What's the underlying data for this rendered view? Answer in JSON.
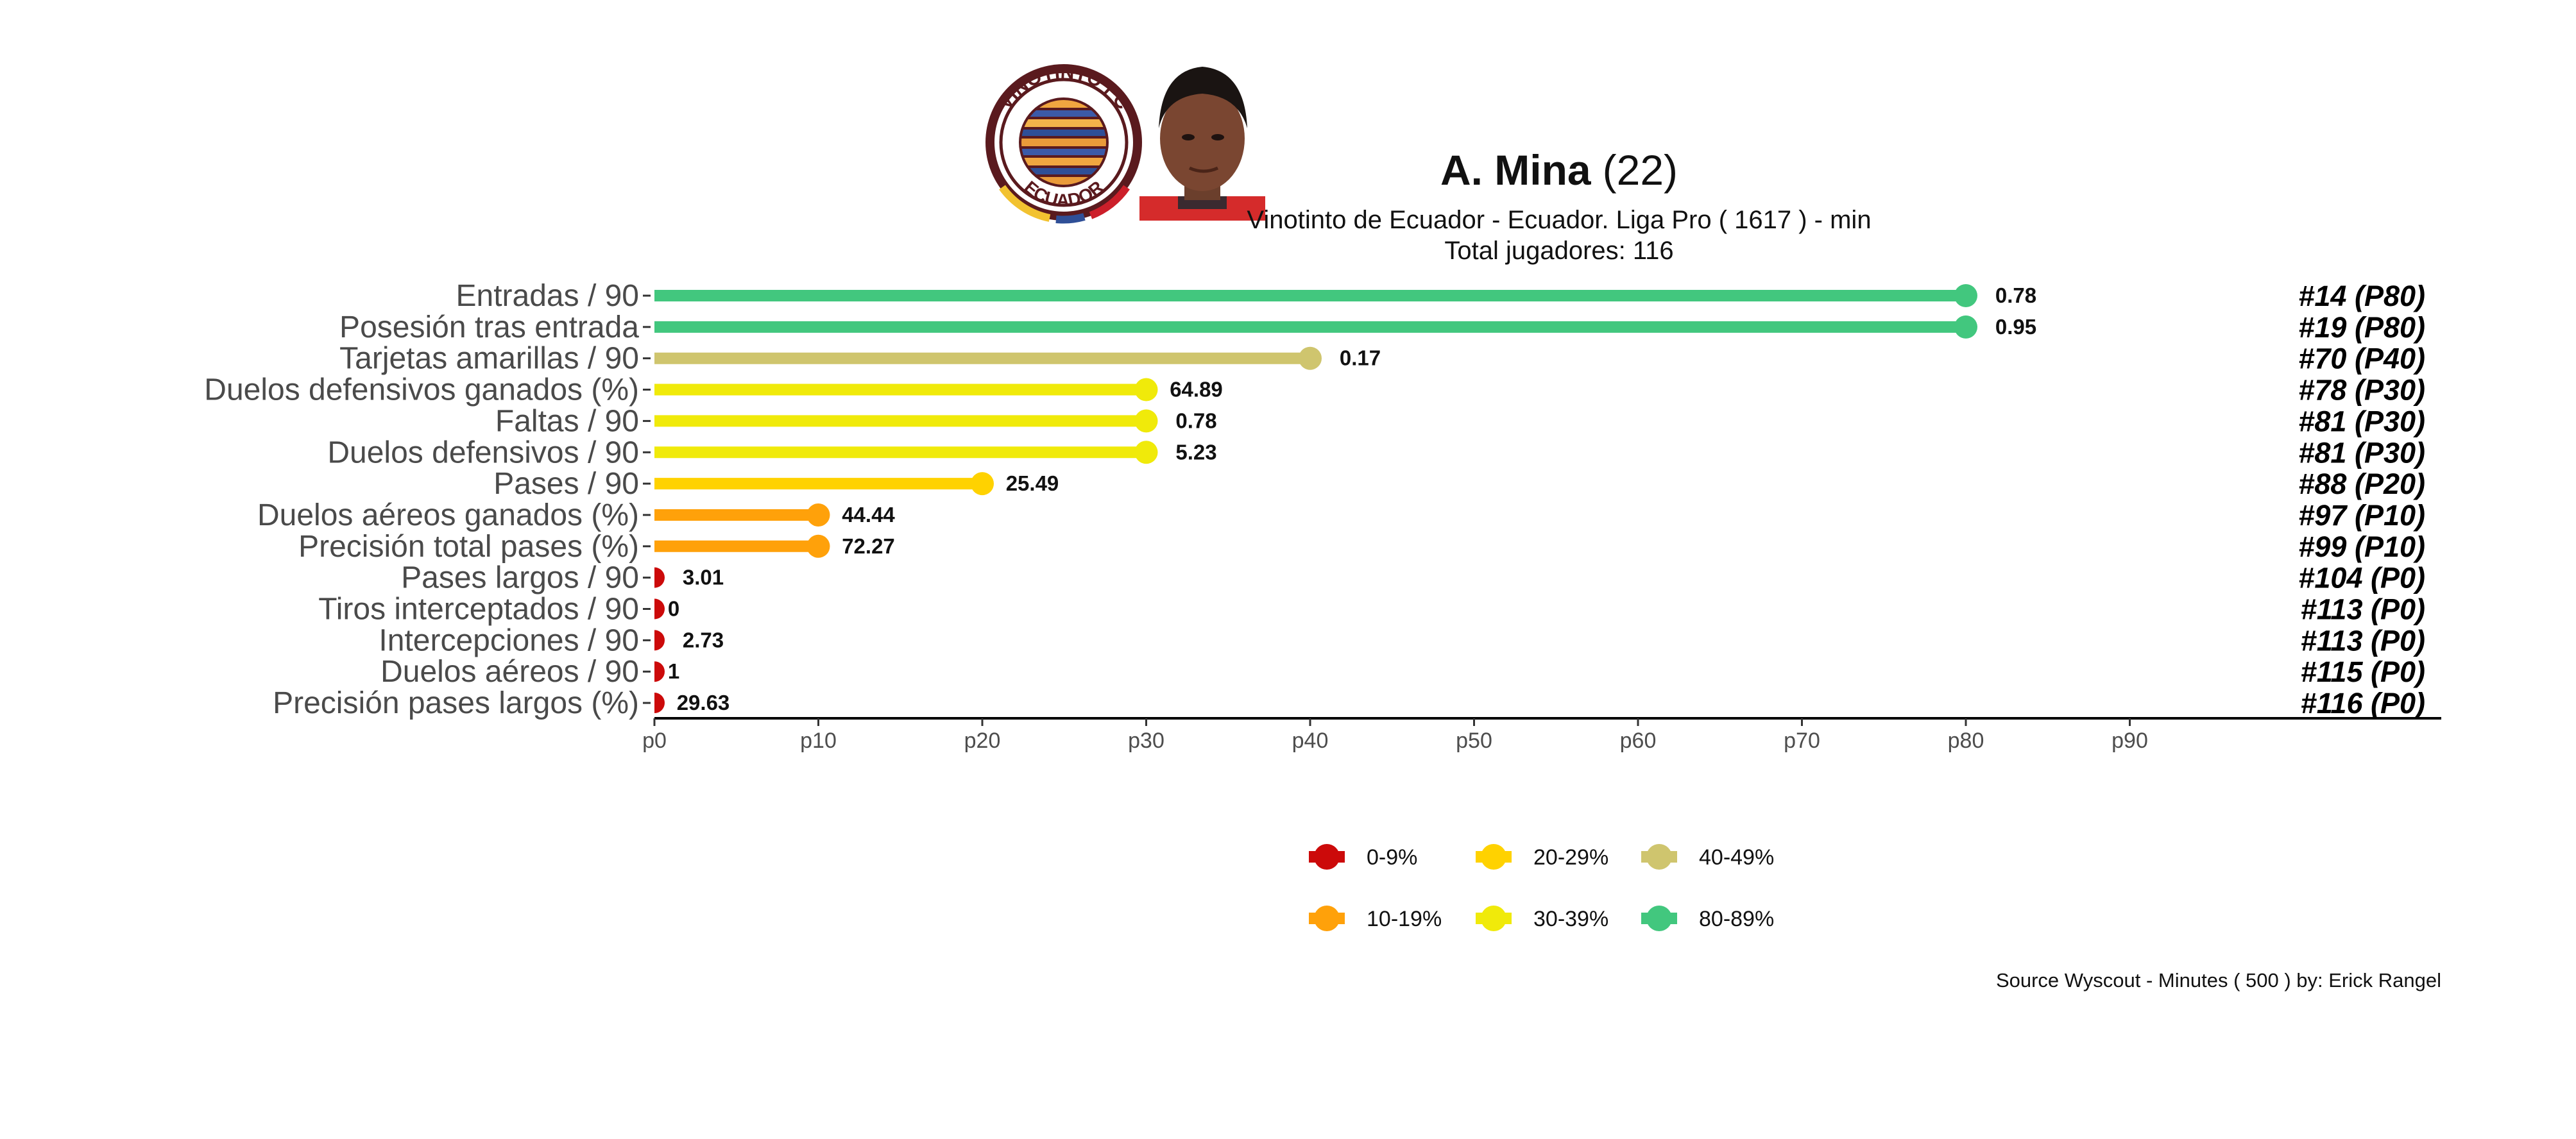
{
  "header": {
    "player_name": "A. Mina",
    "player_age": "(22)",
    "subtitle_line1": "Vinotinto de Ecuador  -  Ecuador. Liga Pro  ( 1617 ) - min",
    "subtitle_line2": "Total jugadores:  116",
    "club_logo": {
      "ring_text_top": "VINOTINTO FC",
      "ring_text_bottom": "ECUADOR",
      "ring_color": "#5a1a1e"
    },
    "player_photo": {
      "icon": "player-headshot",
      "shirt_color": "#d52b2b"
    }
  },
  "caption": "Source Wyscout - Minutes ( 500 ) by: Erick Rangel",
  "chart_data": {
    "type": "bar",
    "orientation": "horizontal-lollipop",
    "xlim": [
      0,
      100
    ],
    "xlabel": "",
    "ylabel": "",
    "x_ticks": [
      "p0",
      "p10",
      "p20",
      "p30",
      "p40",
      "p50",
      "p60",
      "p70",
      "p80",
      "p90"
    ],
    "x_tick_values": [
      0,
      10,
      20,
      30,
      40,
      50,
      60,
      70,
      80,
      90
    ],
    "grid": false,
    "legend_placement": "bottom",
    "categories": [
      "Entradas / 90",
      "Posesión tras entrada",
      "Tarjetas amarillas / 90",
      "Duelos defensivos ganados (%)",
      "Faltas / 90",
      "Duelos defensivos / 90",
      "Pases / 90",
      "Duelos aéreos ganados (%)",
      "Precisión total pases (%)",
      "Pases largos / 90",
      "Tiros interceptados / 90",
      "Intercepciones / 90",
      "Duelos aéreos / 90",
      "Precisión pases largos (%)"
    ],
    "percentiles": [
      80,
      80,
      40,
      30,
      30,
      30,
      20,
      10,
      10,
      0,
      0,
      0,
      0,
      0
    ],
    "value_labels": [
      "0.78",
      "0.95",
      "0.17",
      "64.89",
      "0.78",
      "5.23",
      "25.49",
      "44.44",
      "72.27",
      "3.01",
      "0",
      "2.73",
      "1",
      "29.63"
    ],
    "rank_labels": [
      "#14 (P80)",
      "#19 (P80)",
      "#70 (P40)",
      "#78 (P30)",
      "#81 (P30)",
      "#81 (P30)",
      "#88 (P20)",
      "#97 (P10)",
      "#99 (P10)",
      "#104 (P0)",
      "#113 (P0)",
      "#113 (P0)",
      "#115 (P0)",
      "#116 (P0)"
    ],
    "legend": [
      {
        "label": "0-9%",
        "color": "#cc0a0a"
      },
      {
        "label": "10-19%",
        "color": "#ffa10a"
      },
      {
        "label": "20-29%",
        "color": "#ffd200"
      },
      {
        "label": "30-39%",
        "color": "#f0ea0a"
      },
      {
        "label": "40-49%",
        "color": "#cfc56e"
      },
      {
        "label": "80-89%",
        "color": "#42c77e"
      }
    ],
    "bin_colors": {
      "0": "#cc0a0a",
      "10": "#ffa10a",
      "20": "#ffd200",
      "30": "#f0ea0a",
      "40": "#cfc56e",
      "80": "#42c77e"
    }
  }
}
